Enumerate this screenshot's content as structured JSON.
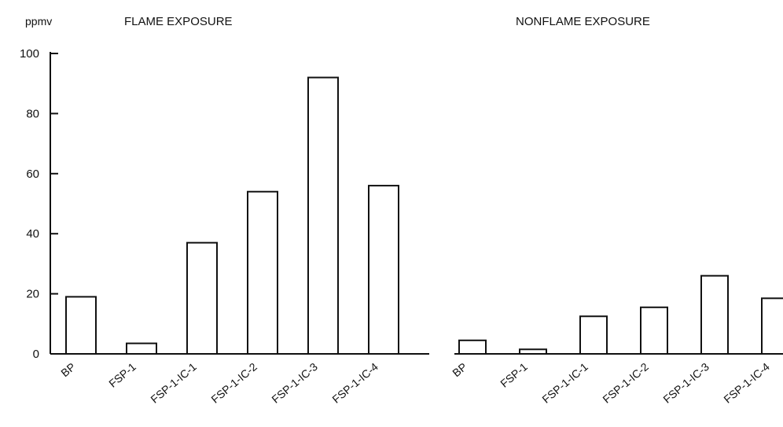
{
  "chart_data": [
    {
      "type": "bar",
      "title": "FLAME EXPOSURE",
      "ylabel": "ppmv",
      "xlabel": "",
      "categories": [
        "BP",
        "FSP-1",
        "FSP-1-IC-1",
        "FSP-1-IC-2",
        "FSP-1-IC-3",
        "FSP-1-IC-4"
      ],
      "values": [
        19,
        3.5,
        37,
        54,
        92,
        56
      ],
      "ylim": [
        0,
        100
      ],
      "yticks": [
        0,
        20,
        40,
        60,
        80,
        100
      ],
      "grid": false
    },
    {
      "type": "bar",
      "title": "NONFLAME EXPOSURE",
      "xlabel": "",
      "ylabel": "",
      "categories": [
        "BP",
        "FSP-1",
        "FSP-1-IC-1",
        "FSP-1-IC-2",
        "FSP-1-IC-3",
        "FSP-1-IC-4"
      ],
      "values": [
        4.5,
        1.5,
        12.5,
        15.5,
        26,
        18.5
      ],
      "ylim": [
        0,
        100
      ],
      "grid": false
    }
  ]
}
